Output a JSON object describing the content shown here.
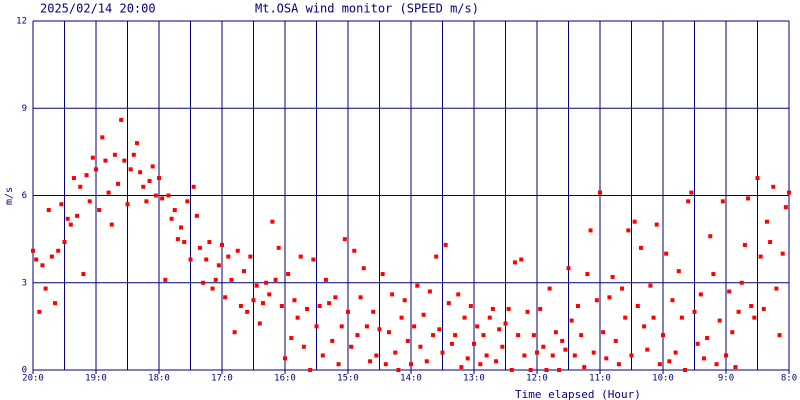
{
  "chart_data": {
    "type": "scatter",
    "title": "Mt.OSA wind monitor (SPEED m/s)",
    "subtitle": "2025/02/14 20:00",
    "xlabel": "Time elapsed (Hour)",
    "ylabel": "m/s",
    "xlim": [
      0,
      12
    ],
    "ylim": [
      0,
      12
    ],
    "yticks": [
      0,
      3,
      6,
      9,
      12
    ],
    "xticks": [
      {
        "value": 0,
        "label": "20:0"
      },
      {
        "value": 1,
        "label": "19:0"
      },
      {
        "value": 2,
        "label": "18:0"
      },
      {
        "value": 3,
        "label": "17:0"
      },
      {
        "value": 4,
        "label": "16:0"
      },
      {
        "value": 5,
        "label": "15:0"
      },
      {
        "value": 6,
        "label": "14:0"
      },
      {
        "value": 7,
        "label": "13:0"
      },
      {
        "value": 8,
        "label": "12:0"
      },
      {
        "value": 9,
        "label": "11:0"
      },
      {
        "value": 10,
        "label": "10:0"
      },
      {
        "value": 11,
        "label": "9:0"
      },
      {
        "value": 12,
        "label": "8:0"
      }
    ],
    "xminor": [
      0.5,
      1.5,
      2.5,
      3.5,
      4.5,
      5.5,
      6.5,
      7.5,
      8.5,
      9.5,
      10.5,
      11.5
    ],
    "grid": true,
    "grid_color": "#000080",
    "series": [
      {
        "color": "#ff0000",
        "x": [
          0,
          0.05,
          0.1,
          0.15,
          0.2,
          0.25,
          0.3,
          0.35,
          0.4,
          0.45,
          0.5,
          0.55,
          0.6,
          0.65,
          0.7,
          0.75,
          0.8,
          0.85,
          0.9,
          0.95,
          1,
          1.05,
          1.1,
          1.15,
          1.2,
          1.25,
          1.3,
          1.35,
          1.4,
          1.45,
          1.5,
          1.55,
          1.6,
          1.65,
          1.7,
          1.75,
          1.8,
          1.85,
          1.9,
          1.95,
          2,
          2.05,
          2.1,
          2.15,
          2.2,
          2.25,
          2.3,
          2.35,
          2.4,
          2.45,
          2.5,
          2.55,
          2.6,
          2.65,
          2.7,
          2.75,
          2.8,
          2.85,
          2.9,
          2.95,
          3,
          3.05,
          3.1,
          3.15,
          3.2,
          3.25,
          3.3,
          3.35,
          3.4,
          3.45,
          3.5,
          3.55,
          3.6,
          3.65,
          3.7,
          3.75,
          3.8,
          3.85,
          3.9,
          3.95,
          4,
          4.05,
          4.1,
          4.15,
          4.2,
          4.25,
          4.3,
          4.35,
          4.4,
          4.45,
          4.5,
          4.55,
          4.6,
          4.65,
          4.7,
          4.75,
          4.8,
          4.85,
          4.9,
          4.95,
          5,
          5.05,
          5.1,
          5.15,
          5.2,
          5.25,
          5.3,
          5.35,
          5.4,
          5.45,
          5.5,
          5.55,
          5.6,
          5.65,
          5.7,
          5.75,
          5.8,
          5.85,
          5.9,
          5.95,
          6,
          6.05,
          6.1,
          6.15,
          6.2,
          6.25,
          6.3,
          6.35,
          6.4,
          6.45,
          6.5,
          6.55,
          6.6,
          6.65,
          6.7,
          6.75,
          6.8,
          6.85,
          6.9,
          6.95,
          7,
          7.05,
          7.1,
          7.15,
          7.2,
          7.25,
          7.3,
          7.35,
          7.4,
          7.45,
          7.5,
          7.55,
          7.6,
          7.65,
          7.7,
          7.75,
          7.8,
          7.85,
          7.9,
          7.95,
          8,
          8.05,
          8.1,
          8.15,
          8.2,
          8.25,
          8.3,
          8.35,
          8.4,
          8.45,
          8.5,
          8.55,
          8.6,
          8.65,
          8.7,
          8.75,
          8.8,
          8.85,
          8.9,
          8.95,
          9,
          9.05,
          9.1,
          9.15,
          9.2,
          9.25,
          9.3,
          9.35,
          9.4,
          9.45,
          9.5,
          9.55,
          9.6,
          9.65,
          9.7,
          9.75,
          9.8,
          9.85,
          9.9,
          9.95,
          10,
          10.05,
          10.1,
          10.15,
          10.2,
          10.25,
          10.3,
          10.35,
          10.4,
          10.45,
          10.5,
          10.55,
          10.6,
          10.65,
          10.7,
          10.75,
          10.8,
          10.85,
          10.9,
          10.95,
          11,
          11.05,
          11.1,
          11.15,
          11.2,
          11.25,
          11.3,
          11.35,
          11.4,
          11.45,
          11.5,
          11.55,
          11.6,
          11.65,
          11.7,
          11.75,
          11.8,
          11.85,
          11.9,
          11.95,
          12
        ],
        "values": [
          4.1,
          3.8,
          2.0,
          3.6,
          2.8,
          5.5,
          3.9,
          2.3,
          4.1,
          5.7,
          4.4,
          5.2,
          5.0,
          6.6,
          5.3,
          6.3,
          3.3,
          6.7,
          5.8,
          7.3,
          6.9,
          5.5,
          8.0,
          7.2,
          6.1,
          5.0,
          7.4,
          6.4,
          8.6,
          7.2,
          5.7,
          6.9,
          7.4,
          7.8,
          6.8,
          6.3,
          5.8,
          6.5,
          7.0,
          6.0,
          6.6,
          5.9,
          3.1,
          6.0,
          5.2,
          5.5,
          4.5,
          4.9,
          4.4,
          5.8,
          3.8,
          6.3,
          5.3,
          4.2,
          3.0,
          3.8,
          4.4,
          2.8,
          3.1,
          3.6,
          4.3,
          2.5,
          3.9,
          3.1,
          1.3,
          4.1,
          2.2,
          3.4,
          2.0,
          3.9,
          2.4,
          2.9,
          1.6,
          2.3,
          3.0,
          2.6,
          5.1,
          3.1,
          4.2,
          2.2,
          0.4,
          3.3,
          1.1,
          2.4,
          1.8,
          3.9,
          0.8,
          2.1,
          0.0,
          3.8,
          1.5,
          2.2,
          0.5,
          3.1,
          2.3,
          1.0,
          2.5,
          0.2,
          1.5,
          4.5,
          2.0,
          0.8,
          4.1,
          1.2,
          2.5,
          3.5,
          1.5,
          0.3,
          2.0,
          0.5,
          1.4,
          3.3,
          0.2,
          1.3,
          2.6,
          0.6,
          0.0,
          1.8,
          2.4,
          1.0,
          0.2,
          1.5,
          2.9,
          0.8,
          1.9,
          0.3,
          2.7,
          1.2,
          3.9,
          1.4,
          0.6,
          4.3,
          2.3,
          0.9,
          1.2,
          2.6,
          0.1,
          1.8,
          0.4,
          2.2,
          0.9,
          1.5,
          0.2,
          1.2,
          0.5,
          1.8,
          2.1,
          0.3,
          1.4,
          0.8,
          1.6,
          2.1,
          0.0,
          3.7,
          1.2,
          3.8,
          0.5,
          2.0,
          0.0,
          1.2,
          0.6,
          2.1,
          0.8,
          0.0,
          2.8,
          0.5,
          1.3,
          0.0,
          1.0,
          0.7,
          3.5,
          1.7,
          0.5,
          2.2,
          1.2,
          0.1,
          3.3,
          4.8,
          0.6,
          2.4,
          6.1,
          1.3,
          0.4,
          2.5,
          3.2,
          1.0,
          0.2,
          2.8,
          1.8,
          4.8,
          0.5,
          5.1,
          2.2,
          4.2,
          1.5,
          0.7,
          2.9,
          1.8,
          5.0,
          0.2,
          1.2,
          4.0,
          0.3,
          2.4,
          0.6,
          3.4,
          1.8,
          0.0,
          5.8,
          6.1,
          2.0,
          0.9,
          2.6,
          0.4,
          1.1,
          4.6,
          3.3,
          0.2,
          1.7,
          5.8,
          0.5,
          2.7,
          1.3,
          0.1,
          2.0,
          3.0,
          4.3,
          5.9,
          2.2,
          1.8,
          6.6,
          3.9,
          2.1,
          5.1,
          4.4,
          6.3,
          2.8,
          1.2,
          4.0,
          5.6,
          6.1
        ]
      }
    ]
  }
}
